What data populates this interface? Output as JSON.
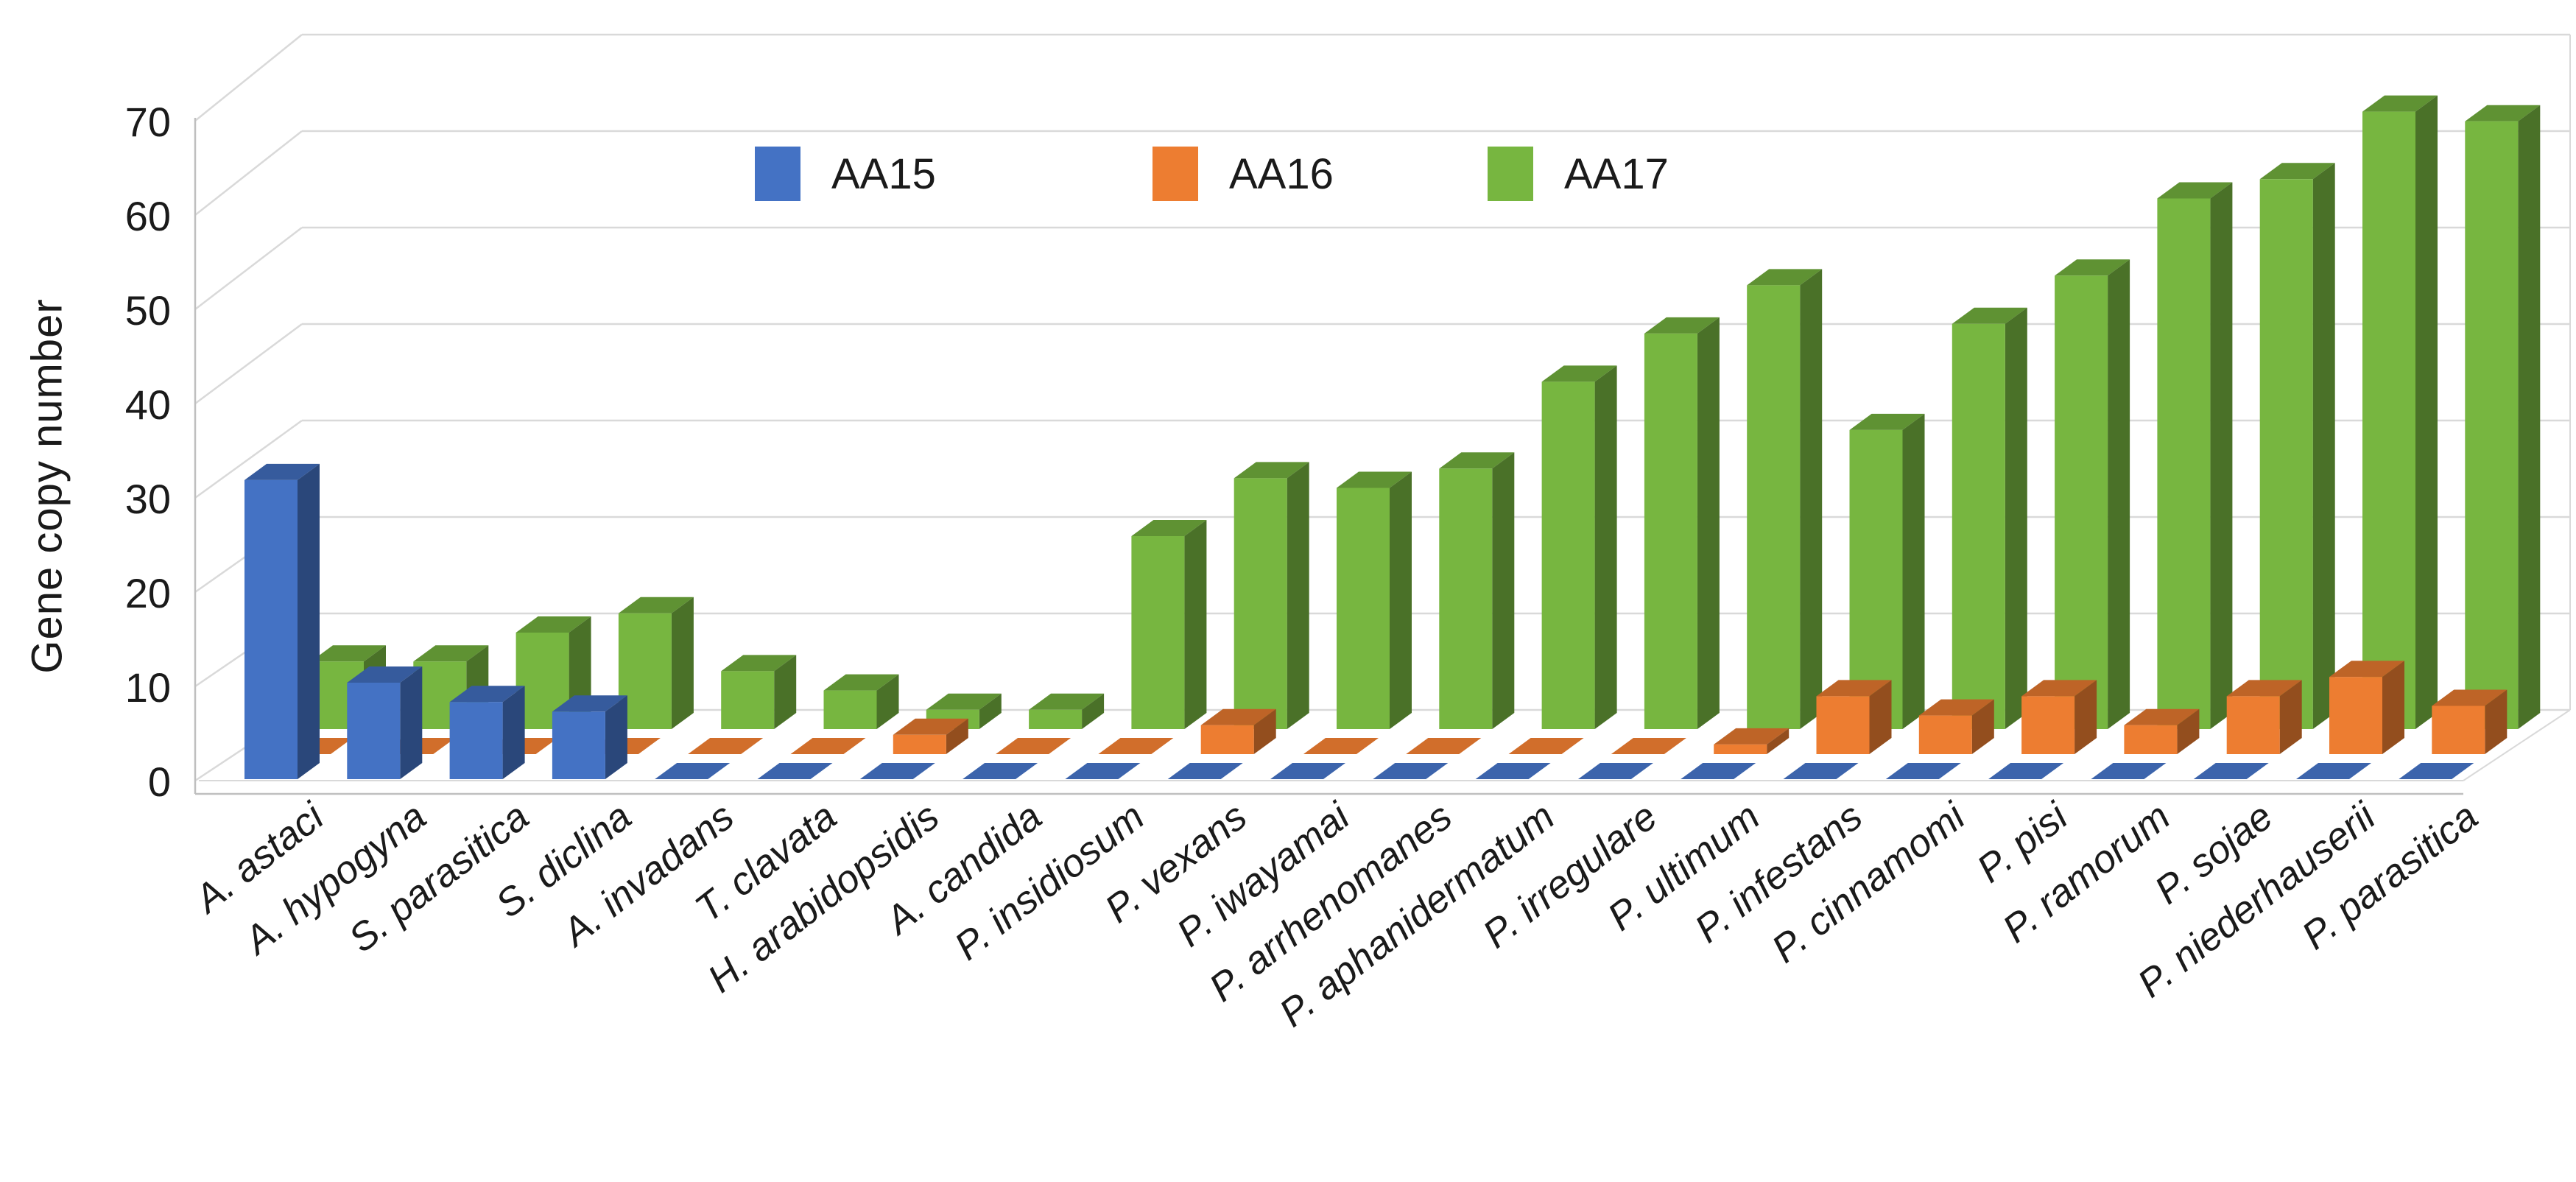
{
  "figure": {
    "background": "#ffffff",
    "gridline_color": "#d9d9d9",
    "axis_line_color": "#bfbfbf",
    "text_color": "#1a1a1a"
  },
  "legend": {
    "position": "top-center",
    "items": [
      {
        "label": "AA15",
        "color": "#4472C4"
      },
      {
        "label": "AA16",
        "color": "#ED7D31"
      },
      {
        "label": "AA17",
        "color": "#77B640"
      }
    ]
  },
  "chart_data": {
    "type": "bar",
    "style": "3d-clustered-column",
    "title": "",
    "xlabel": "",
    "ylabel": "Gene copy number",
    "ylim": [
      0,
      70
    ],
    "yticks": [
      0,
      10,
      20,
      30,
      40,
      50,
      60,
      70
    ],
    "grid": "horizontal",
    "legend_position": "top-center",
    "categories": [
      "A. astaci",
      "A. hypogyna",
      "S. parasitica",
      "S. diclina",
      "A. invadans",
      "T. clavata",
      "H. arabidopsidis",
      "A. candida",
      "P. insidiosum",
      "P. vexans",
      "P. iwayamai",
      "P. arrhenomanes",
      "P. aphanidermatum",
      "P. irregulare",
      "P. ultimum",
      "P. infestans",
      "P. cinnamomi",
      "P. pisi",
      "P. ramorum",
      "P. sojae",
      "P. niederhauserii",
      "P. parasitica"
    ],
    "series": [
      {
        "name": "AA15",
        "color": "#4472C4",
        "values": [
          31,
          10,
          8,
          7,
          0,
          0,
          0,
          0,
          0,
          0,
          0,
          0,
          0,
          0,
          0,
          0,
          0,
          0,
          0,
          0,
          0,
          0
        ]
      },
      {
        "name": "AA16",
        "color": "#ED7D31",
        "values": [
          0,
          0,
          0,
          0,
          0,
          0,
          2,
          0,
          0,
          3,
          0,
          0,
          0,
          0,
          1,
          6,
          4,
          6,
          3,
          6,
          8,
          5
        ]
      },
      {
        "name": "AA17",
        "color": "#77B640",
        "values": [
          7,
          7,
          10,
          12,
          6,
          4,
          2,
          2,
          20,
          26,
          25,
          27,
          36,
          41,
          46,
          31,
          42,
          47,
          55,
          57,
          64,
          63
        ]
      }
    ]
  }
}
